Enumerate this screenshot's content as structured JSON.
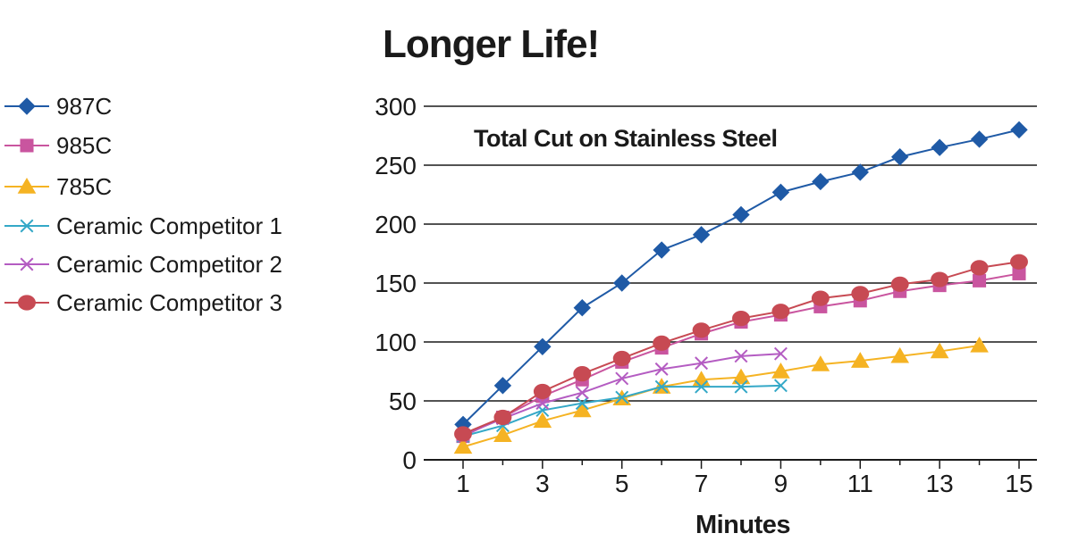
{
  "chart_data": {
    "type": "line",
    "title": "Longer Life!",
    "subtitle": "Total Cut on Stainless Steel",
    "xlabel": "Minutes",
    "ylabel": "",
    "ylim": [
      0,
      300
    ],
    "xlim": [
      1,
      15
    ],
    "yticks": [
      0,
      50,
      100,
      150,
      200,
      250,
      300
    ],
    "xticks": [
      1,
      3,
      5,
      7,
      9,
      11,
      13,
      15
    ],
    "grid": true,
    "legend_position": "left",
    "series": [
      {
        "name": "987C",
        "color": "#1f5aa6",
        "marker": "diamond",
        "x": [
          1,
          2,
          3,
          4,
          5,
          6,
          7,
          8,
          9,
          10,
          11,
          12,
          13,
          14,
          15
        ],
        "values": [
          30,
          63,
          96,
          129,
          150,
          178,
          191,
          208,
          227,
          236,
          244,
          257,
          265,
          272,
          280
        ]
      },
      {
        "name": "985C",
        "color": "#c9559f",
        "marker": "square",
        "x": [
          1,
          2,
          3,
          4,
          5,
          6,
          7,
          8,
          9,
          10,
          11,
          12,
          13,
          14,
          15
        ],
        "values": [
          20,
          36,
          54,
          68,
          83,
          95,
          107,
          117,
          123,
          130,
          135,
          143,
          148,
          152,
          158
        ]
      },
      {
        "name": "785C",
        "color": "#f5b323",
        "marker": "triangle",
        "x": [
          1,
          2,
          3,
          4,
          5,
          6,
          7,
          8,
          9,
          10,
          11,
          12,
          13,
          14
        ],
        "values": [
          11,
          21,
          33,
          42,
          52,
          62,
          68,
          70,
          75,
          81,
          84,
          88,
          92,
          97
        ]
      },
      {
        "name": "Ceramic Competitor 1",
        "color": "#34a8c7",
        "marker": "x",
        "x": [
          1,
          2,
          3,
          4,
          5,
          6,
          7,
          8,
          9
        ],
        "values": [
          20,
          29,
          42,
          48,
          53,
          62,
          62,
          62,
          63
        ]
      },
      {
        "name": "Ceramic Competitor 2",
        "color": "#b45cc2",
        "marker": "x",
        "x": [
          1,
          2,
          3,
          4,
          5,
          6,
          7,
          8,
          9
        ],
        "values": [
          21,
          35,
          48,
          57,
          69,
          77,
          82,
          88,
          90
        ]
      },
      {
        "name": "Ceramic Competitor 3",
        "color": "#c74a53",
        "marker": "circle",
        "x": [
          1,
          2,
          3,
          4,
          5,
          6,
          7,
          8,
          9,
          10,
          11,
          12,
          13,
          14,
          15
        ],
        "values": [
          22,
          36,
          58,
          73,
          86,
          99,
          110,
          120,
          126,
          137,
          141,
          149,
          153,
          163,
          168
        ]
      }
    ]
  }
}
